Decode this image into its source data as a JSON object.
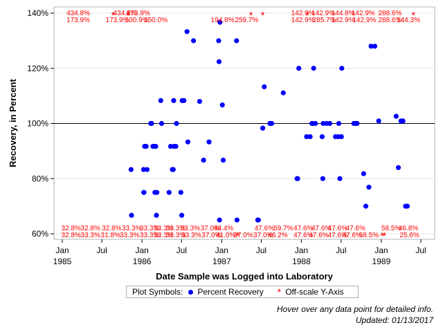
{
  "chart_data": {
    "type": "scatter",
    "xlabel": "Date Sample was Logged into Laboratory",
    "ylabel": "Recovery, in Percent",
    "ylim": [
      60,
      140
    ],
    "xlim": [
      "1985-01-01",
      "1989-07-01"
    ],
    "y_ticks": [
      60,
      80,
      100,
      120,
      140
    ],
    "y_tick_labels": [
      "60%",
      "80%",
      "100%",
      "120%",
      "140%"
    ],
    "x_ticks": [
      {
        "date": "1985-01-01",
        "label": "Jan",
        "year": "1985"
      },
      {
        "date": "1985-07-01",
        "label": "Jul",
        "year": ""
      },
      {
        "date": "1986-01-01",
        "label": "Jan",
        "year": "1986"
      },
      {
        "date": "1986-07-01",
        "label": "Jul",
        "year": ""
      },
      {
        "date": "1987-01-01",
        "label": "Jan",
        "year": "1987"
      },
      {
        "date": "1987-07-01",
        "label": "Jul",
        "year": ""
      },
      {
        "date": "1988-01-01",
        "label": "Jan",
        "year": "1988"
      },
      {
        "date": "1988-07-01",
        "label": "Jul",
        "year": ""
      },
      {
        "date": "1989-01-01",
        "label": "Jan",
        "year": "1989"
      },
      {
        "date": "1989-07-01",
        "label": "Jul",
        "year": ""
      }
    ],
    "reference_line": 100,
    "grid": true,
    "series": [
      {
        "name": "Percent Recovery",
        "marker": "circle",
        "color": "#0000ff",
        "points": [
          {
            "x": "1985-11-12",
            "y": 83.3
          },
          {
            "x": "1985-11-14",
            "y": 66.7
          },
          {
            "x": "1986-01-08",
            "y": 83.3
          },
          {
            "x": "1986-01-09",
            "y": 75.0
          },
          {
            "x": "1986-01-10",
            "y": 75.0
          },
          {
            "x": "1986-01-13",
            "y": 91.7
          },
          {
            "x": "1986-01-16",
            "y": 91.7
          },
          {
            "x": "1986-01-20",
            "y": 91.7
          },
          {
            "x": "1986-01-24",
            "y": 83.3
          },
          {
            "x": "1986-02-10",
            "y": 100.0
          },
          {
            "x": "1986-02-14",
            "y": 100.0
          },
          {
            "x": "1986-02-20",
            "y": 91.7
          },
          {
            "x": "1986-02-25",
            "y": 91.7
          },
          {
            "x": "1986-03-01",
            "y": 75.0
          },
          {
            "x": "1986-03-05",
            "y": 91.7
          },
          {
            "x": "1986-03-08",
            "y": 66.7
          },
          {
            "x": "1986-03-10",
            "y": 75.0
          },
          {
            "x": "1986-03-28",
            "y": 108.3
          },
          {
            "x": "1986-04-01",
            "y": 100.0
          },
          {
            "x": "1986-05-05",
            "y": 75.0
          },
          {
            "x": "1986-05-12",
            "y": 91.7
          },
          {
            "x": "1986-05-20",
            "y": 83.3
          },
          {
            "x": "1986-05-24",
            "y": 83.3
          },
          {
            "x": "1986-05-26",
            "y": 108.3
          },
          {
            "x": "1986-05-28",
            "y": 91.7
          },
          {
            "x": "1986-06-05",
            "y": 91.7
          },
          {
            "x": "1986-06-08",
            "y": 100.0
          },
          {
            "x": "1986-06-28",
            "y": 75.0
          },
          {
            "x": "1986-07-02",
            "y": 66.7
          },
          {
            "x": "1986-07-04",
            "y": 108.3
          },
          {
            "x": "1986-07-12",
            "y": 108.3
          },
          {
            "x": "1986-07-26",
            "y": 133.3
          },
          {
            "x": "1986-07-30",
            "y": 93.3
          },
          {
            "x": "1986-08-25",
            "y": 130.0
          },
          {
            "x": "1986-09-22",
            "y": 108.0
          },
          {
            "x": "1986-10-10",
            "y": 86.7
          },
          {
            "x": "1986-11-04",
            "y": 93.3
          },
          {
            "x": "1986-12-18",
            "y": 130.0
          },
          {
            "x": "1986-12-20",
            "y": 122.4
          },
          {
            "x": "1986-12-22",
            "y": 65.0
          },
          {
            "x": "1986-12-24",
            "y": 136.7
          },
          {
            "x": "1987-01-04",
            "y": 106.7
          },
          {
            "x": "1987-01-08",
            "y": 86.7
          },
          {
            "x": "1987-03-10",
            "y": 130.0
          },
          {
            "x": "1987-03-12",
            "y": 65.0
          },
          {
            "x": "1987-06-15",
            "y": 65.0
          },
          {
            "x": "1987-06-18",
            "y": 65.0
          },
          {
            "x": "1987-07-08",
            "y": 98.3
          },
          {
            "x": "1987-07-15",
            "y": 113.3
          },
          {
            "x": "1987-08-10",
            "y": 100.0
          },
          {
            "x": "1987-08-14",
            "y": 100.0
          },
          {
            "x": "1987-08-18",
            "y": 100.0
          },
          {
            "x": "1987-10-10",
            "y": 111.1
          },
          {
            "x": "1987-12-12",
            "y": 80.0
          },
          {
            "x": "1987-12-15",
            "y": 80.0
          },
          {
            "x": "1987-12-20",
            "y": 120.0
          },
          {
            "x": "1988-01-25",
            "y": 95.2
          },
          {
            "x": "1988-02-10",
            "y": 95.2
          },
          {
            "x": "1988-02-18",
            "y": 100.0
          },
          {
            "x": "1988-02-22",
            "y": 100.0
          },
          {
            "x": "1988-02-26",
            "y": 120.0
          },
          {
            "x": "1988-03-05",
            "y": 100.0
          },
          {
            "x": "1988-04-05",
            "y": 95.2
          },
          {
            "x": "1988-04-08",
            "y": 80.0
          },
          {
            "x": "1988-04-10",
            "y": 100.0
          },
          {
            "x": "1988-04-25",
            "y": 100.0
          },
          {
            "x": "1988-05-10",
            "y": 100.0
          },
          {
            "x": "1988-06-05",
            "y": 95.2
          },
          {
            "x": "1988-06-18",
            "y": 95.2
          },
          {
            "x": "1988-06-20",
            "y": 100.0
          },
          {
            "x": "1988-06-25",
            "y": 80.0
          },
          {
            "x": "1988-07-02",
            "y": 95.2
          },
          {
            "x": "1988-07-04",
            "y": 120.0
          },
          {
            "x": "1988-08-28",
            "y": 100.0
          },
          {
            "x": "1988-09-05",
            "y": 100.0
          },
          {
            "x": "1988-09-12",
            "y": 100.0
          },
          {
            "x": "1988-10-12",
            "y": 81.8
          },
          {
            "x": "1988-10-22",
            "y": 70.0
          },
          {
            "x": "1988-11-05",
            "y": 76.9
          },
          {
            "x": "1988-11-15",
            "y": 128.0
          },
          {
            "x": "1988-12-02",
            "y": 128.0
          },
          {
            "x": "1988-12-20",
            "y": 100.9
          },
          {
            "x": "1989-03-10",
            "y": 102.6
          },
          {
            "x": "1989-03-20",
            "y": 84.0
          },
          {
            "x": "1989-04-01",
            "y": 100.9
          },
          {
            "x": "1989-04-10",
            "y": 100.9
          },
          {
            "x": "1989-04-22",
            "y": 70.0
          },
          {
            "x": "1989-04-30",
            "y": 70.0
          }
        ]
      },
      {
        "name": "Off-scale Y-Axis",
        "marker": "star",
        "color": "#ff0000",
        "points_high": [
          {
            "x": "1985-08-22",
            "label": "434.8%"
          },
          {
            "x": "1985-10-28",
            "label": "434.8%"
          },
          {
            "x": "1987-05-15",
            "label": "142.9%"
          },
          {
            "x": "1987-07-08",
            "label": "142.9%"
          },
          {
            "x": "1988-01-28",
            "label": "142.9%"
          },
          {
            "x": "1989-05-28",
            "label": "144.3%"
          }
        ],
        "points_low": [
          {
            "x": "1987-03-15",
            "label": "37.0%"
          },
          {
            "x": "1989-01-05",
            "label": "58.5%"
          },
          {
            "x": "1989-01-15",
            "label": "58.5%"
          }
        ],
        "labels_high": [
          {
            "x": "1985-03-15",
            "row": 1,
            "text": "434.8%"
          },
          {
            "x": "1985-03-15",
            "row": 2,
            "text": "173.9%"
          },
          {
            "x": "1985-10-15",
            "row": 1,
            "text": "434.8%"
          },
          {
            "x": "1985-09-10",
            "row": 2,
            "text": "173.9%"
          },
          {
            "x": "1985-12-15",
            "row": 1,
            "text": "173.9%"
          },
          {
            "x": "1985-12-08",
            "row": 2,
            "text": "100.9%"
          },
          {
            "x": "1986-03-05",
            "row": 2,
            "text": "150.0%"
          },
          {
            "x": "1987-01-05",
            "row": 2,
            "text": "194.8%"
          },
          {
            "x": "1987-04-25",
            "row": 2,
            "text": "259.7%"
          },
          {
            "x": "1988-01-08",
            "row": 1,
            "text": "142.9%"
          },
          {
            "x": "1988-01-08",
            "row": 2,
            "text": "142.9%"
          },
          {
            "x": "1988-04-10",
            "row": 1,
            "text": "142.9%"
          },
          {
            "x": "1988-04-15",
            "row": 2,
            "text": "285.7%"
          },
          {
            "x": "1988-07-10",
            "row": 1,
            "text": "144.8%"
          },
          {
            "x": "1988-07-10",
            "row": 2,
            "text": "142.9%"
          },
          {
            "x": "1988-10-10",
            "row": 1,
            "text": "142.9%"
          },
          {
            "x": "1988-10-15",
            "row": 2,
            "text": "142.9%"
          },
          {
            "x": "1989-02-10",
            "row": 1,
            "text": "288.6%"
          },
          {
            "x": "1989-02-10",
            "row": 2,
            "text": "288.6%"
          },
          {
            "x": "1989-05-05",
            "row": 2,
            "text": "144.3%"
          }
        ],
        "labels_low": [
          {
            "x": "1985-02-10",
            "row": 1,
            "text": "32.8%"
          },
          {
            "x": "1985-02-10",
            "row": 2,
            "text": "32.8%"
          },
          {
            "x": "1985-05-10",
            "row": 1,
            "text": "32.8%"
          },
          {
            "x": "1985-05-10",
            "row": 2,
            "text": "33.3%"
          },
          {
            "x": "1985-08-15",
            "row": 1,
            "text": "32.8%"
          },
          {
            "x": "1985-08-10",
            "row": 2,
            "text": "31.8%"
          },
          {
            "x": "1985-11-15",
            "row": 1,
            "text": "33.3%"
          },
          {
            "x": "1985-11-05",
            "row": 2,
            "text": "33.3%"
          },
          {
            "x": "1986-02-05",
            "row": 1,
            "text": "33.3%"
          },
          {
            "x": "1986-02-05",
            "row": 2,
            "text": "33.3%"
          },
          {
            "x": "1986-04-10",
            "row": 1,
            "text": "33.3%"
          },
          {
            "x": "1986-04-10",
            "row": 2,
            "text": "33.3%"
          },
          {
            "x": "1986-06-05",
            "row": 1,
            "text": "33.3%"
          },
          {
            "x": "1986-06-05",
            "row": 2,
            "text": "33.3%"
          },
          {
            "x": "1986-08-10",
            "row": 1,
            "text": "33.3%"
          },
          {
            "x": "1986-08-15",
            "row": 2,
            "text": "33.3%"
          },
          {
            "x": "1986-11-10",
            "row": 1,
            "text": "37.0%"
          },
          {
            "x": "1986-11-15",
            "row": 2,
            "text": "37.0%"
          },
          {
            "x": "1987-01-10",
            "row": 1,
            "text": "44.4%"
          },
          {
            "x": "1987-01-20",
            "row": 2,
            "text": "41.0%"
          },
          {
            "x": "1987-04-10",
            "row": 2,
            "text": "37.0%"
          },
          {
            "x": "1987-07-15",
            "row": 1,
            "text": "47.6%"
          },
          {
            "x": "1987-07-10",
            "row": 2,
            "text": "37.0%"
          },
          {
            "x": "1987-10-10",
            "row": 1,
            "text": "59.7%"
          },
          {
            "x": "1987-09-15",
            "row": 2,
            "text": "46.2%"
          },
          {
            "x": "1988-01-10",
            "row": 1,
            "text": "47.6%"
          },
          {
            "x": "1988-01-10",
            "row": 2,
            "text": "47.6%"
          },
          {
            "x": "1988-04-01",
            "row": 1,
            "text": "47.6%"
          },
          {
            "x": "1988-03-20",
            "row": 2,
            "text": "47.6%"
          },
          {
            "x": "1988-06-15",
            "row": 1,
            "text": "47.6%"
          },
          {
            "x": "1988-06-15",
            "row": 2,
            "text": "47.6%"
          },
          {
            "x": "1988-09-05",
            "row": 1,
            "text": "47.6%"
          },
          {
            "x": "1988-08-20",
            "row": 2,
            "text": "47.6%"
          },
          {
            "x": "1988-11-05",
            "row": 2,
            "text": "58.5%"
          },
          {
            "x": "1989-02-15",
            "row": 1,
            "text": "58.5%"
          },
          {
            "x": "1989-05-05",
            "row": 1,
            "text": "46.8%"
          },
          {
            "x": "1989-05-10",
            "row": 2,
            "text": "25.6%"
          }
        ]
      }
    ]
  },
  "legend": {
    "title": "Plot Symbols:",
    "items": [
      {
        "label": "Percent Recovery",
        "symbol": "●"
      },
      {
        "label": "Off-scale Y-Axis",
        "symbol": "*"
      }
    ]
  },
  "notes": {
    "hover": "Hover over any data point for detailed info.",
    "updated": "Updated: 01/13/2017"
  }
}
